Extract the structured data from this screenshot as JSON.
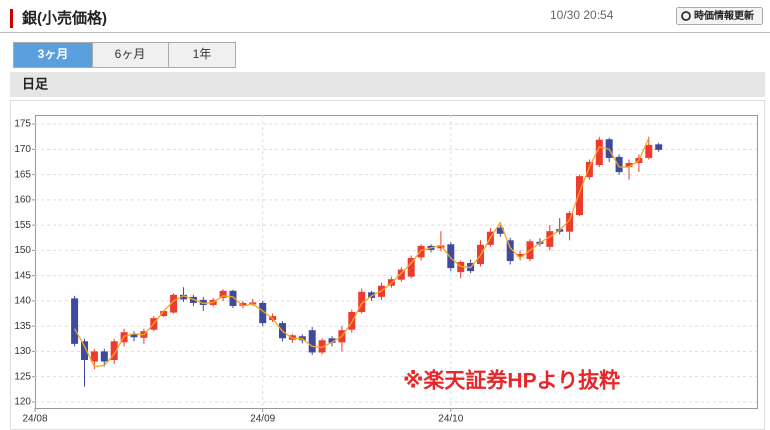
{
  "header": {
    "title": "銀(小売価格)",
    "timestamp": "10/30 20:54",
    "refresh_button": "時価情報更新"
  },
  "tabs": [
    "3ヶ月",
    "6ヶ月",
    "1年"
  ],
  "section": "日足",
  "chart_data": {
    "type": "candlestick",
    "annotation": "※楽天証券HPより抜粋",
    "categories": [
      "24/08",
      null,
      null,
      null,
      null,
      null,
      null,
      null,
      null,
      null,
      null,
      null,
      null,
      null,
      null,
      null,
      null,
      null,
      null,
      null,
      null,
      null,
      null,
      "24/09",
      null,
      null,
      null,
      null,
      null,
      null,
      null,
      null,
      null,
      null,
      null,
      null,
      null,
      null,
      null,
      null,
      null,
      null,
      "24/10",
      null,
      null,
      null,
      null,
      null,
      null,
      null,
      null,
      null,
      null,
      null,
      null,
      null,
      null,
      null,
      null,
      null,
      null,
      null,
      null,
      null
    ],
    "open": [
      null,
      null,
      null,
      null,
      140.5,
      132,
      128,
      130,
      128.3,
      131.8,
      133.5,
      132.7,
      134.3,
      137,
      137.7,
      141.2,
      140.8,
      140.2,
      139.2,
      140.6,
      142,
      139,
      139.3,
      139.6,
      136.2,
      135.6,
      132.3,
      133,
      134.2,
      129.8,
      132.6,
      131.8,
      134.3,
      137.8,
      141.7,
      140.8,
      143,
      144.2,
      144.8,
      148.6,
      150.9,
      150.4,
      151.2,
      145.7,
      147.5,
      147.3,
      151.1,
      154.5,
      152,
      148.8,
      148.3,
      151.7,
      150.7,
      154.2,
      153.7,
      157,
      164.5,
      166.9,
      172,
      168.5,
      166.5,
      167.3,
      168.3,
      171
    ],
    "high": [
      null,
      null,
      null,
      null,
      141,
      132.5,
      130.5,
      130.5,
      132.5,
      134.5,
      134,
      134.5,
      137,
      138.2,
      141.5,
      142.7,
      141.2,
      140.8,
      140.6,
      142.3,
      142.2,
      140,
      140.4,
      140,
      137.5,
      136,
      133.5,
      133.4,
      134.8,
      132.6,
      133,
      135,
      138.3,
      142.4,
      142,
      143.6,
      144.8,
      146.7,
      149,
      151.2,
      151.2,
      153.8,
      151.6,
      148,
      148.2,
      152,
      154.4,
      155,
      152.5,
      150,
      152.2,
      152.4,
      155,
      156.4,
      157.8,
      165,
      168,
      172.5,
      172.3,
      169,
      168,
      169,
      172.5,
      171.3
    ],
    "low": [
      null,
      null,
      null,
      null,
      131,
      123,
      126.5,
      127,
      127.5,
      131,
      132,
      131.5,
      134,
      136.8,
      137.5,
      139.8,
      139,
      138,
      138.9,
      140,
      138.6,
      138.5,
      139,
      135,
      135.8,
      132,
      131.7,
      131.6,
      129.3,
      129.4,
      131,
      130,
      133.7,
      137.5,
      140,
      140.2,
      142.6,
      143.8,
      144.5,
      148,
      149.6,
      149.8,
      145.9,
      144.5,
      145.5,
      146.8,
      150.7,
      152.7,
      147.2,
      148,
      147.9,
      150.8,
      150,
      153.2,
      152,
      156.8,
      164,
      166.5,
      167.5,
      165,
      164,
      165.5,
      168,
      169.5
    ],
    "close": [
      null,
      null,
      null,
      null,
      131.5,
      128.3,
      130,
      128,
      132,
      133.8,
      132.8,
      134,
      136.6,
      138,
      141.2,
      140.3,
      139.6,
      139.2,
      140.2,
      142,
      139,
      139.6,
      139.7,
      135.6,
      137,
      132.6,
      133.2,
      132.2,
      129.8,
      132.2,
      131.7,
      134.2,
      137.8,
      141.8,
      140.6,
      143,
      144.3,
      146.2,
      148.5,
      150.9,
      150.1,
      151,
      146.5,
      147.7,
      145.9,
      151.1,
      153.7,
      153.3,
      147.9,
      149.3,
      151.8,
      151.3,
      153.8,
      153.7,
      157.4,
      164.7,
      167.5,
      171.9,
      168.3,
      165.5,
      167.3,
      168.3,
      170.9,
      169.9
    ],
    "moving_average": {
      "color": "#f5a623",
      "values": [
        null,
        null,
        null,
        null,
        134.5,
        131,
        127,
        127.2,
        129.5,
        133,
        133.5,
        133.3,
        135.5,
        138,
        140,
        141,
        140.3,
        139.5,
        139.7,
        141,
        140.8,
        139,
        139.4,
        138,
        136.5,
        134,
        132.6,
        132.5,
        131,
        130.8,
        131.8,
        133,
        135.8,
        139.5,
        141,
        142,
        143.5,
        145.5,
        147.5,
        150,
        150.5,
        151,
        148.5,
        146.8,
        146.6,
        149,
        152.5,
        155.5,
        150.5,
        148.5,
        150,
        151.5,
        152.7,
        154,
        156,
        161.5,
        166.5,
        170.5,
        170,
        166.5,
        166.5,
        167.8,
        172.2,
        null
      ]
    },
    "up_color": "#ee3b2f",
    "down_color": "#3d4a9e",
    "ylim": [
      118.8,
      176.8
    ],
    "yticks": [
      120,
      125,
      130,
      135,
      140,
      145,
      150,
      155,
      160,
      165,
      170,
      175
    ],
    "grid": true
  }
}
